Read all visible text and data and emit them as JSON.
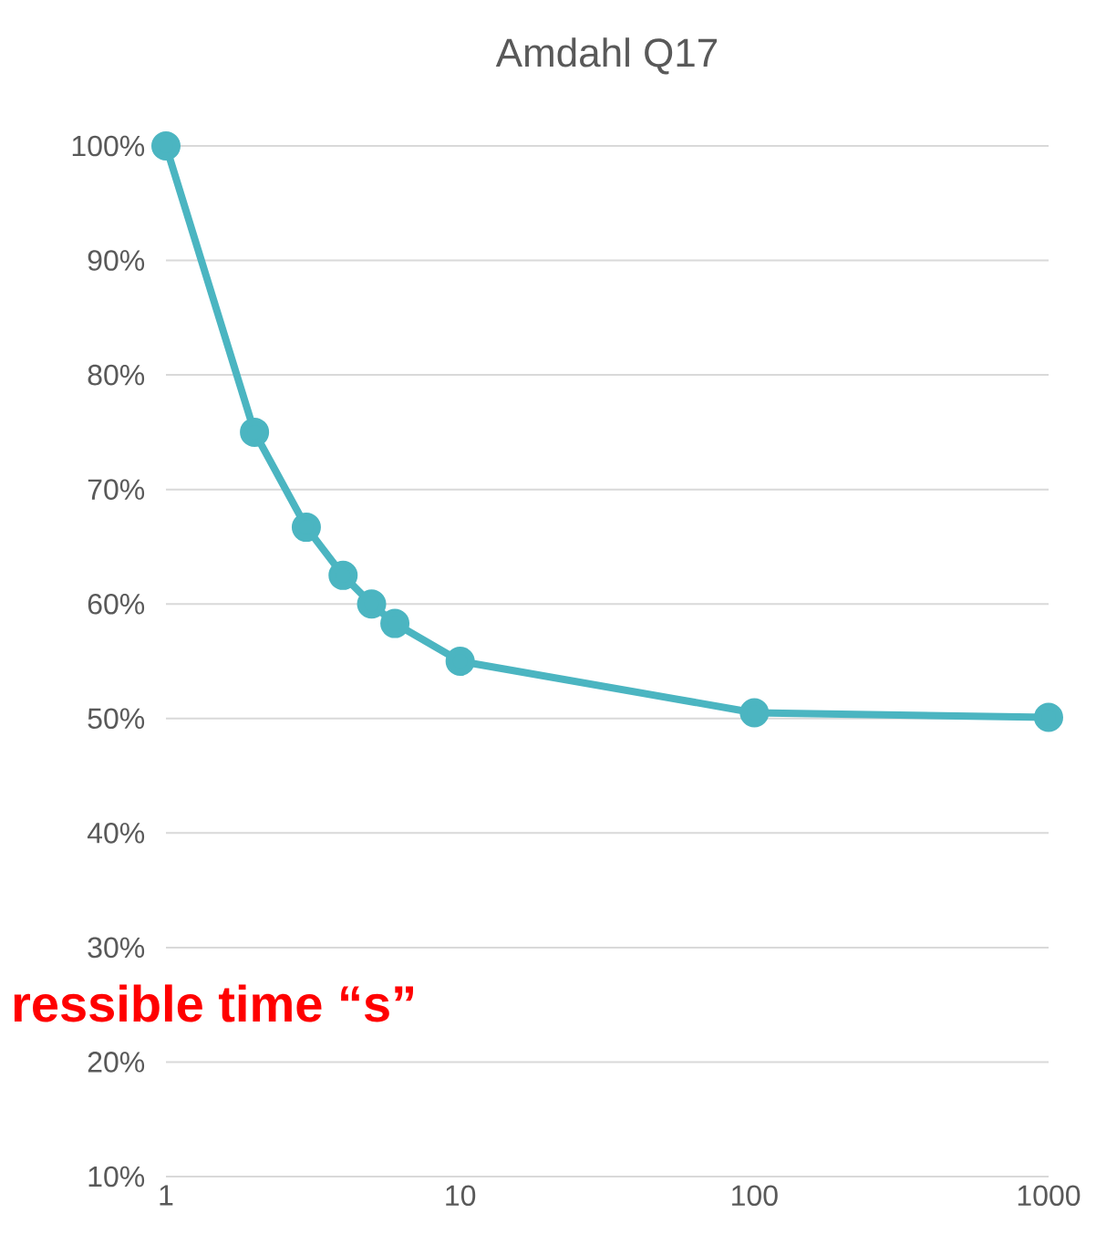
{
  "chart_data": {
    "type": "line",
    "title": "Amdahl Q17",
    "x": [
      1,
      2,
      3,
      4,
      5,
      6,
      10,
      100,
      1000
    ],
    "series": [
      {
        "color": "#4bb5c1",
        "values": [
          100,
          75,
          66.7,
          62.5,
          60,
          58.3,
          55,
          50.5,
          50.1
        ]
      }
    ],
    "xlim": [
      1,
      1000
    ],
    "xticks": [
      1,
      10,
      100,
      1000
    ],
    "log": "x",
    "ylim": [
      10,
      100
    ],
    "yticks": [
      {
        "value": 10,
        "label": "10%"
      },
      {
        "value": 20,
        "label": "20%"
      },
      {
        "value": 30,
        "label": "30%"
      },
      {
        "value": 40,
        "label": "40%"
      },
      {
        "value": 50,
        "label": "50%"
      },
      {
        "value": 60,
        "label": "60%"
      },
      {
        "value": 70,
        "label": "70%"
      },
      {
        "value": 80,
        "label": "80%"
      },
      {
        "value": 90,
        "label": "90%"
      },
      {
        "value": 100,
        "label": "100%"
      }
    ],
    "grid": "y",
    "marker": "circle",
    "line_style": "solid",
    "annotations": [
      "ressible time “s”"
    ]
  }
}
